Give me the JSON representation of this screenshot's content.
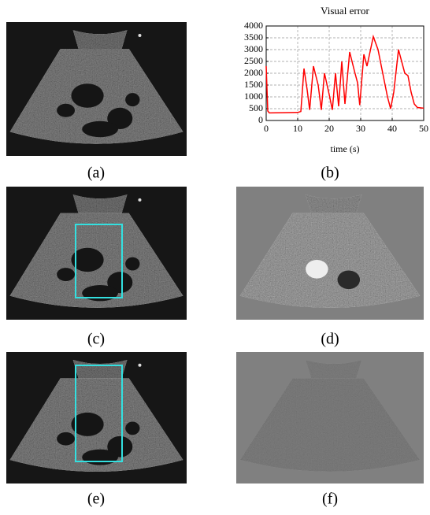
{
  "captions": [
    "(a)",
    "(b)",
    "(c)",
    "(d)",
    "(e)",
    "(f)"
  ],
  "chart_data": {
    "type": "line",
    "title": "Visual error",
    "xlabel": "time (s)",
    "x": [
      0,
      0.5,
      1,
      5,
      10,
      11,
      12,
      13,
      13.8,
      15,
      16.5,
      17.5,
      18.5,
      20,
      21,
      22,
      23,
      24,
      25,
      26.5,
      28,
      29,
      29.7,
      31,
      32,
      34,
      35.5,
      37,
      38.5,
      39.5,
      40.5,
      42,
      43,
      44,
      45,
      46,
      47,
      48,
      50
    ],
    "values": [
      2300,
      400,
      320,
      330,
      340,
      380,
      2200,
      1300,
      450,
      2300,
      1500,
      450,
      2000,
      1100,
      450,
      2000,
      600,
      2500,
      700,
      2900,
      2100,
      1600,
      650,
      2800,
      2300,
      3550,
      3000,
      2000,
      1000,
      500,
      1200,
      3000,
      2500,
      2000,
      1900,
      1200,
      700,
      550,
      520
    ],
    "color": "#ff0000",
    "xlim": [
      0,
      50
    ],
    "ylim": [
      0,
      4000
    ],
    "xticks": [
      0,
      10,
      20,
      30,
      40,
      50
    ],
    "yticks": [
      0,
      500,
      1000,
      1500,
      2000,
      2500,
      3000,
      3500,
      4000
    ],
    "grid": true
  }
}
